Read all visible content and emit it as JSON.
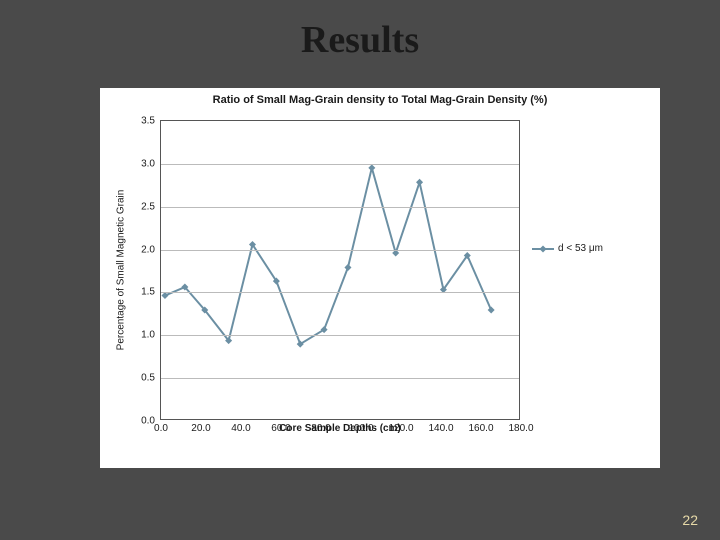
{
  "slide": {
    "title": "Results",
    "title_fontsize": 38,
    "background_color": "#4a4a4a",
    "slide_number": "22",
    "slide_number_color": "#e6d9a8"
  },
  "chart": {
    "type": "line",
    "title": "Ratio of Small Mag-Grain density to Total Mag-Grain Density (%)",
    "title_fontsize": 11,
    "background_color": "#ffffff",
    "plot_border_color": "#555555",
    "grid_color": "#bbbbbb",
    "ylabel": "Percentage of Small Magnetic Grain",
    "xlabel": "Core Sample Depths (cm)",
    "label_fontsize": 10,
    "tick_fontsize": 10,
    "tick_color": "#1a1a1a",
    "xlim": [
      0,
      180
    ],
    "ylim": [
      0,
      3.5
    ],
    "xtick_step": 20,
    "ytick_step": 0.5,
    "xticks": [
      "0.0",
      "20.0",
      "40.0",
      "60.0",
      "80.0",
      "100.0",
      "120.0",
      "140.0",
      "160.0",
      "180.0"
    ],
    "yticks": [
      "0.0",
      "0.5",
      "1.0",
      "1.5",
      "2.0",
      "2.5",
      "3.0",
      "3.5"
    ],
    "series": [
      {
        "name": "d < 53 μm",
        "color": "#6b8fa3",
        "line_width": 2,
        "marker": "diamond",
        "marker_size": 5,
        "x": [
          2,
          12,
          22,
          34,
          46,
          58,
          70,
          82,
          94,
          106,
          118,
          130,
          142,
          154,
          166
        ],
        "y": [
          1.45,
          1.55,
          1.28,
          0.92,
          2.05,
          1.62,
          0.88,
          1.05,
          1.78,
          2.95,
          1.95,
          2.78,
          1.52,
          1.92,
          1.28
        ]
      }
    ],
    "legend": {
      "label": "d < 53 μm",
      "position": "right"
    }
  }
}
